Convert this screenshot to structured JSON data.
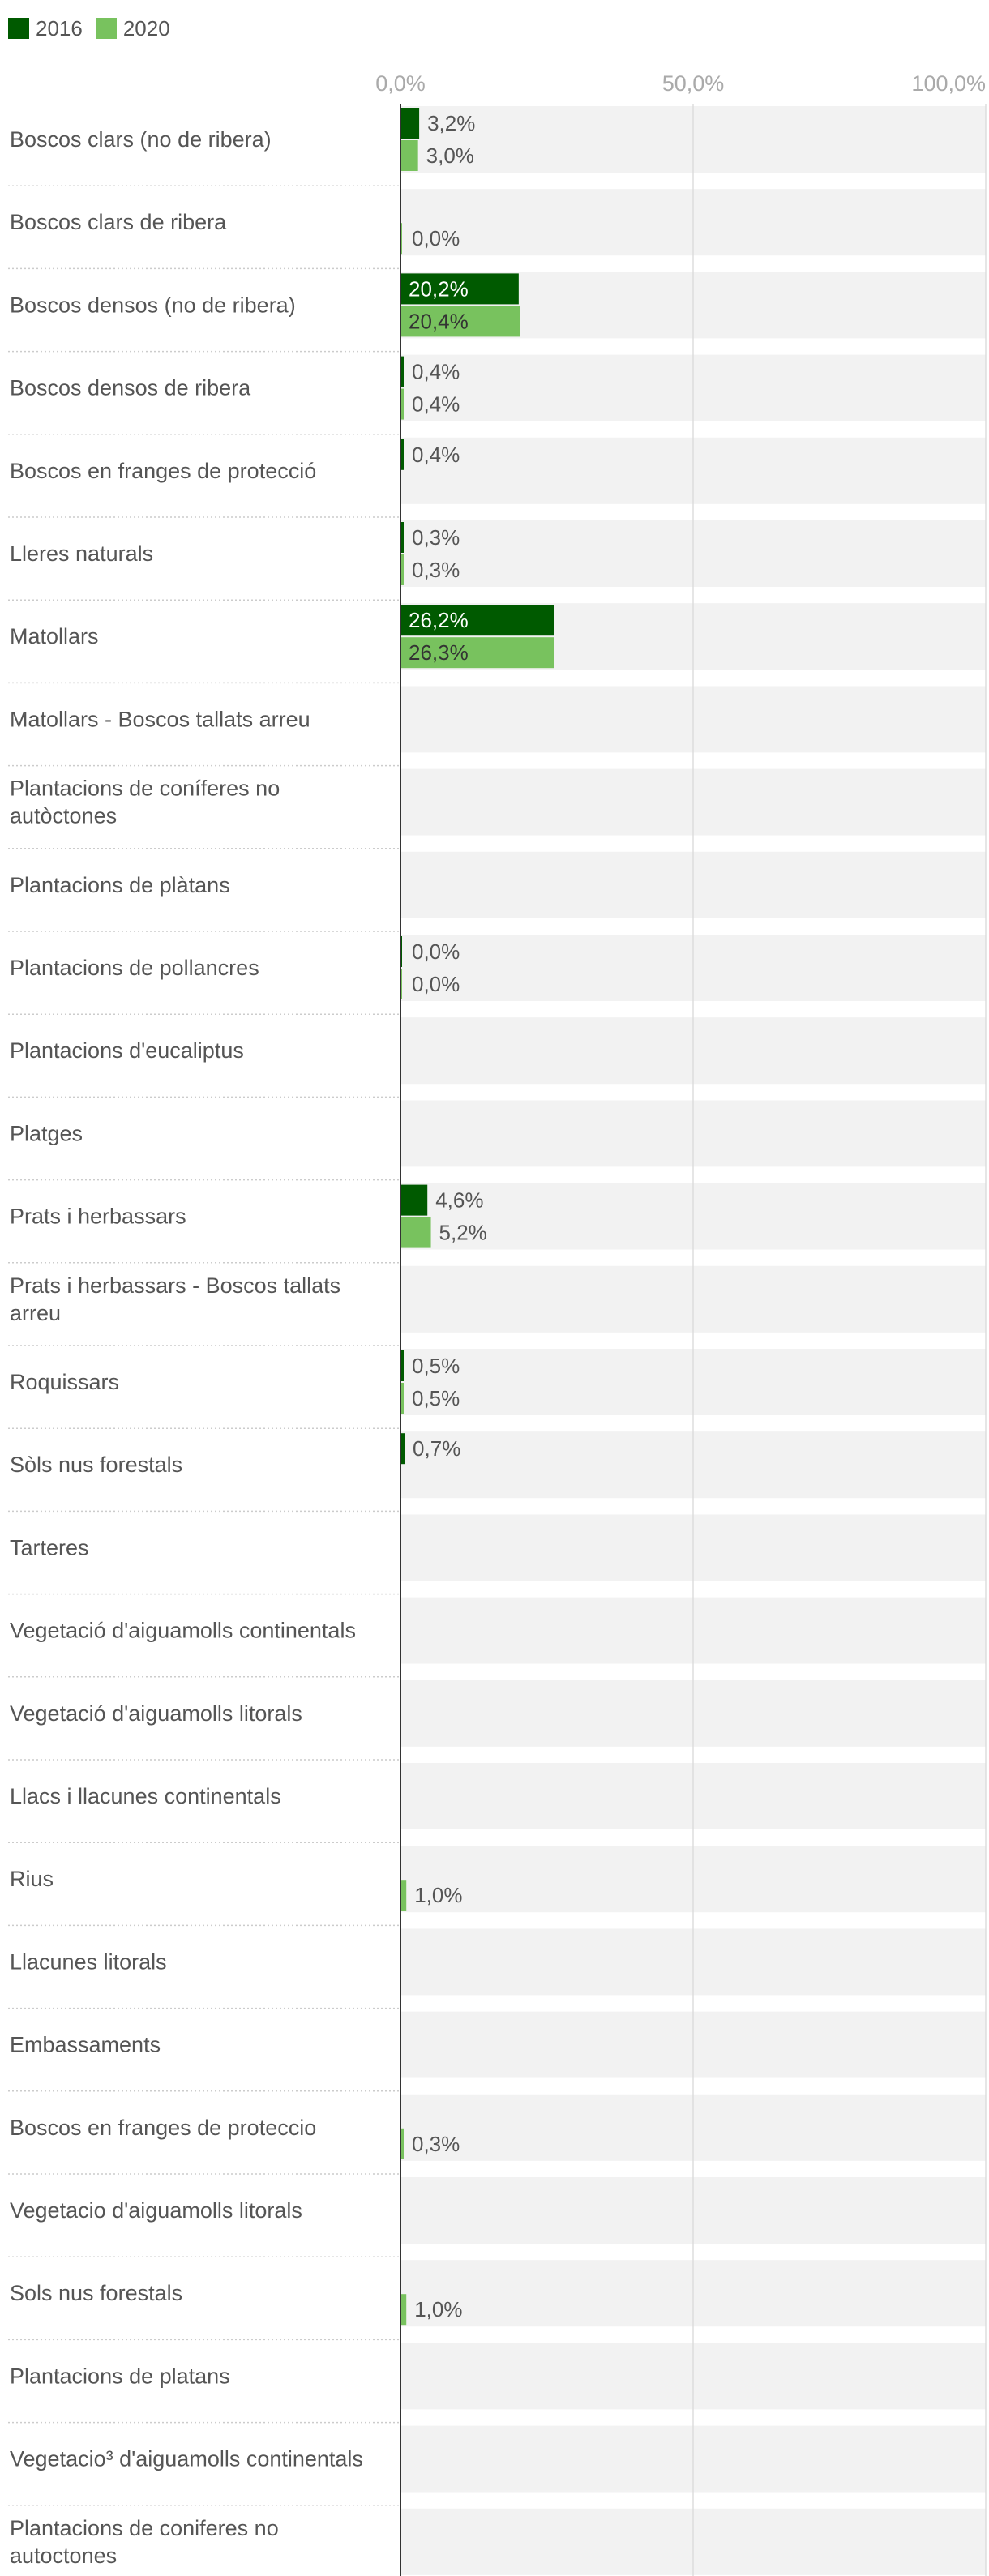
{
  "colors": {
    "s2016": "#005a00",
    "s2020": "#78c25e",
    "track": "#f2f2f2",
    "rowline": "#cccccc",
    "gridline": "#dddddd",
    "axis": "#333333"
  },
  "chart_data": {
    "type": "bar",
    "orientation": "horizontal",
    "xlim": [
      0,
      100
    ],
    "ticks": [
      {
        "value": 0,
        "label": "0,0%"
      },
      {
        "value": 50,
        "label": "50,0%"
      },
      {
        "value": 100,
        "label": "100,0%"
      }
    ],
    "legend_position": "top-left",
    "series": [
      {
        "name": "2016",
        "values": [
          3.2,
          null,
          20.2,
          0.4,
          0.4,
          0.3,
          26.2,
          null,
          null,
          null,
          0.0,
          null,
          null,
          4.6,
          null,
          0.5,
          0.7,
          null,
          null,
          null,
          null,
          null,
          null,
          null,
          null,
          null,
          null,
          null,
          null,
          null
        ],
        "labels": [
          "3,2%",
          "",
          "20,2%",
          "0,4%",
          "0,4%",
          "0,3%",
          "26,2%",
          "",
          "",
          "",
          "0,0%",
          "",
          "",
          "4,6%",
          "",
          "0,5%",
          "0,7%",
          "",
          "",
          "",
          "",
          "",
          "",
          "",
          "",
          "",
          "",
          "",
          "",
          ""
        ]
      },
      {
        "name": "2020",
        "values": [
          3.0,
          0.0,
          20.4,
          0.4,
          null,
          0.3,
          26.3,
          null,
          null,
          null,
          0.0,
          null,
          null,
          5.2,
          null,
          0.5,
          null,
          null,
          null,
          null,
          null,
          1.0,
          null,
          null,
          0.3,
          null,
          1.0,
          null,
          null,
          null
        ],
        "labels": [
          "3,0%",
          "0,0%",
          "20,4%",
          "0,4%",
          "",
          "0,3%",
          "26,3%",
          "",
          "",
          "",
          "0,0%",
          "",
          "",
          "5,2%",
          "",
          "0,5%",
          "",
          "",
          "",
          "",
          "",
          "1,0%",
          "",
          "",
          "0,3%",
          "",
          "1,0%",
          "",
          "",
          ""
        ]
      }
    ],
    "categories": [
      "Boscos clars (no de ribera)",
      "Boscos clars de ribera",
      "Boscos densos (no de ribera)",
      "Boscos densos de ribera",
      "Boscos en franges de protecció",
      "Lleres naturals",
      "Matollars",
      "Matollars - Boscos tallats arreu",
      "Plantacions de coníferes no autòctones",
      "Plantacions de plàtans",
      "Plantacions de pollancres",
      "Plantacions d'eucaliptus",
      "Platges",
      "Prats i herbassars",
      "Prats i herbassars - Boscos tallats arreu",
      "Roquissars",
      "Sòls nus forestals",
      "Tarteres",
      "Vegetació d'aiguamolls continentals",
      "Vegetació d'aiguamolls litorals",
      "Llacs i llacunes continentals",
      "Rius",
      "Llacunes litorals",
      "Embassaments",
      "Boscos en franges de proteccio",
      "Vegetacio d'aiguamolls litorals",
      "Sols nus forestals",
      "Plantacions de platans",
      "Vegetacio³ d'aiguamolls continentals",
      "Plantacions de coniferes no autoctones"
    ],
    "label_lines": [
      [
        "Boscos clars (no de ribera)"
      ],
      [
        "Boscos clars de ribera"
      ],
      [
        "Boscos densos (no de ribera)"
      ],
      [
        "Boscos densos de ribera"
      ],
      [
        "Boscos en franges de protecció"
      ],
      [
        "Lleres naturals"
      ],
      [
        "Matollars"
      ],
      [
        "Matollars - Boscos tallats arreu"
      ],
      [
        "Plantacions de coníferes no",
        "autòctones"
      ],
      [
        "Plantacions de plàtans"
      ],
      [
        "Plantacions de pollancres"
      ],
      [
        "Plantacions d'eucaliptus"
      ],
      [
        "Platges"
      ],
      [
        "Prats i herbassars"
      ],
      [
        "Prats i herbassars - Boscos tallats",
        "arreu"
      ],
      [
        "Roquissars"
      ],
      [
        "Sòls nus forestals"
      ],
      [
        "Tarteres"
      ],
      [
        "Vegetació d'aiguamolls continentals"
      ],
      [
        "Vegetació d'aiguamolls litorals"
      ],
      [
        "Llacs i llacunes continentals"
      ],
      [
        "Rius"
      ],
      [
        "Llacunes litorals"
      ],
      [
        "Embassaments"
      ],
      [
        "Boscos en franges de proteccio"
      ],
      [
        "Vegetacio d'aiguamolls litorals"
      ],
      [
        "Sols nus forestals"
      ],
      [
        "Plantacions de platans"
      ],
      [
        "Vegetacio³ d'aiguamolls continentals"
      ],
      [
        "Plantacions de coniferes no",
        "autoctones"
      ]
    ]
  }
}
